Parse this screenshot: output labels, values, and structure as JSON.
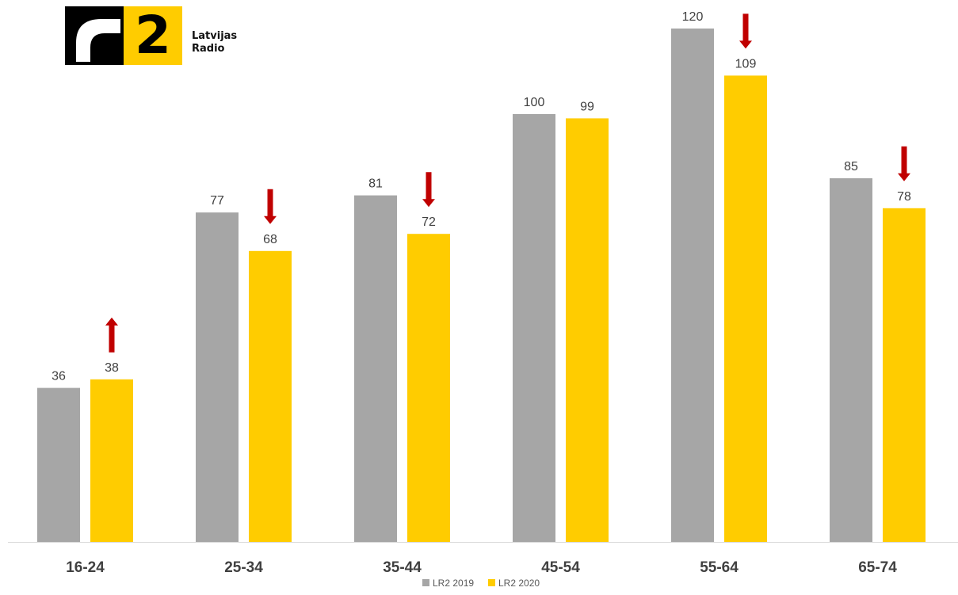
{
  "brand": {
    "digit": "2",
    "name_line1": "Latvijas",
    "name_line2": "Radio"
  },
  "chart_data": {
    "type": "bar",
    "categories": [
      "16-24",
      "25-34",
      "35-44",
      "45-54",
      "55-64",
      "65-74"
    ],
    "series": [
      {
        "name": "LR2 2019",
        "values": [
          36,
          77,
          81,
          100,
          120,
          85
        ],
        "color": "#a6a6a6"
      },
      {
        "name": "LR2 2020",
        "values": [
          38,
          68,
          72,
          99,
          109,
          78
        ],
        "color": "#ffcc00"
      }
    ],
    "trend_arrows": [
      "up",
      "down",
      "down",
      "none",
      "down",
      "down"
    ],
    "arrow_color": "#c00000",
    "ylim": [
      0,
      120
    ],
    "grid": false,
    "legend_position": "bottom",
    "title": "",
    "xlabel": "",
    "ylabel": ""
  }
}
